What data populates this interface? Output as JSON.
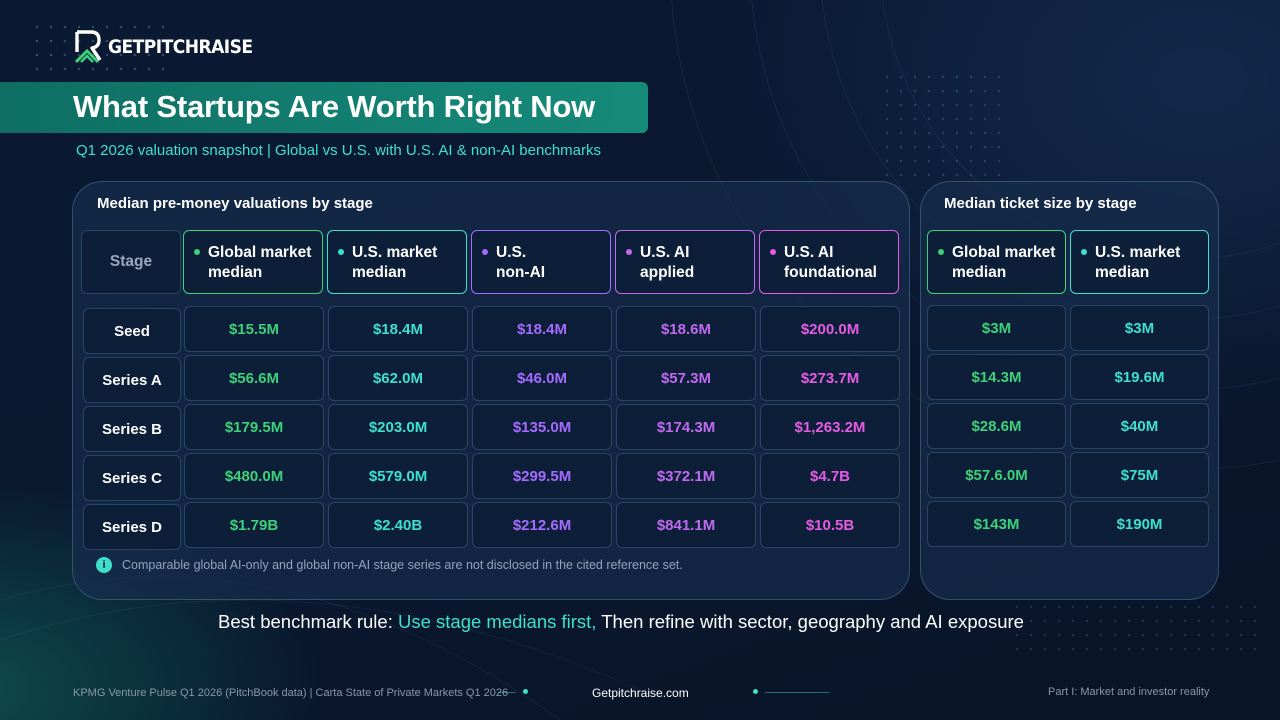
{
  "brand": {
    "name": "GETPITCHRAISE"
  },
  "title": "What Startups Are Worth Right Now",
  "subtitle": "Q1 2026 valuation snapshot | Global vs U.S. with U.S. AI & non-AI benchmarks",
  "colors": {
    "green": "#3dd17a",
    "teal": "#3ee0cd",
    "purple": "#a56bff",
    "violet": "#c06af0",
    "magenta": "#e45ce3"
  },
  "valuations": {
    "panel_title": "Median pre-money valuations by stage",
    "stage_header": "Stage",
    "columns": [
      {
        "label": "Global market\nmedian",
        "color": "#3dd17a"
      },
      {
        "label": "U.S. market\nmedian",
        "color": "#3ee0cd"
      },
      {
        "label": "U.S.\nnon-AI",
        "color": "#a56bff"
      },
      {
        "label": "U.S. AI\napplied",
        "color": "#c06af0"
      },
      {
        "label": "U.S. AI\nfoundational",
        "color": "#e45ce3"
      }
    ],
    "rows": [
      {
        "stage": "Seed",
        "values": [
          "$15.5M",
          "$18.4M",
          "$18.4M",
          "$18.6M",
          "$200.0M"
        ]
      },
      {
        "stage": "Series A",
        "values": [
          "$56.6M",
          "$62.0M",
          "$46.0M",
          "$57.3M",
          "$273.7M"
        ]
      },
      {
        "stage": "Series B",
        "values": [
          "$179.5M",
          "$203.0M",
          "$135.0M",
          "$174.3M",
          "$1,263.2M"
        ]
      },
      {
        "stage": "Series C",
        "values": [
          "$480.0M",
          "$579.0M",
          "$299.5M",
          "$372.1M",
          "$4.7B"
        ]
      },
      {
        "stage": "Series D",
        "values": [
          "$1.79B",
          "$2.40B",
          "$212.6M",
          "$841.1M",
          "$10.5B"
        ]
      }
    ],
    "note": "Comparable global AI-only and global non-AI stage series are not disclosed in the cited reference set."
  },
  "tickets": {
    "panel_title": "Median ticket size by stage",
    "columns": [
      {
        "label": "Global market\nmedian",
        "color": "#3dd17a"
      },
      {
        "label": "U.S. market\nmedian",
        "color": "#3ee0cd"
      }
    ],
    "rows": [
      [
        "$3M",
        "$3M"
      ],
      [
        "$14.3M",
        "$19.6M"
      ],
      [
        "$28.6M",
        "$40M"
      ],
      [
        "$57.6.0M",
        "$75M"
      ],
      [
        "$143M",
        "$190M"
      ]
    ]
  },
  "rule": {
    "prefix": "Best benchmark rule: ",
    "highlight": "Use stage medians first,",
    "suffix": " Then refine with sector, geography and AI exposure"
  },
  "footer": {
    "sources": "KPMG Venture Pulse Q1 2026 (PitchBook data) | Carta State of Private Markets Q1 2026",
    "website": "Getpitchraise.com",
    "section": "Part I: Market and investor reality"
  }
}
